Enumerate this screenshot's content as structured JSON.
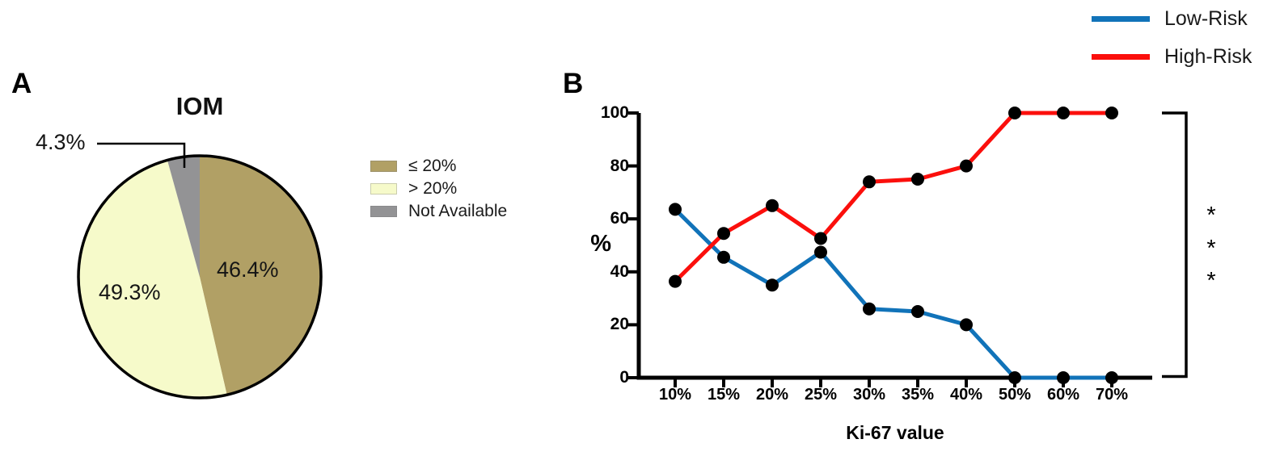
{
  "panels": {
    "a_label": "A",
    "b_label": "B"
  },
  "chart_data": [
    {
      "type": "pie",
      "panel": "A",
      "title": "IOM",
      "start_angle_deg_from_top": 0,
      "direction": "clockwise",
      "slices": [
        {
          "label": "≤ 20%",
          "value": 46.4,
          "display": "46.4%",
          "color": "#B1A065"
        },
        {
          "label": "> 20%",
          "value": 49.3,
          "display": "49.3%",
          "color": "#F6FACA"
        },
        {
          "label": "Not Available",
          "value": 4.3,
          "display": "4.3%",
          "color": "#939395"
        }
      ],
      "outline_color": "#000000",
      "legend_position": "right"
    },
    {
      "type": "line",
      "panel": "B",
      "xlabel": "Ki-67 value",
      "ylabel": "%",
      "ylim": [
        0,
        100
      ],
      "yticks": [
        0,
        20,
        40,
        60,
        80,
        100
      ],
      "categories": [
        "10%",
        "15%",
        "20%",
        "25%",
        "30%",
        "35%",
        "40%",
        "50%",
        "60%",
        "70%"
      ],
      "series": [
        {
          "name": "Low-Risk",
          "color": "#1173B9",
          "values": [
            63.6,
            45.5,
            35,
            47.4,
            26,
            25,
            20,
            0,
            0,
            0
          ]
        },
        {
          "name": "High-Risk",
          "color": "#FB0F0C",
          "values": [
            36.4,
            54.5,
            65,
            52.6,
            74,
            75,
            80,
            100,
            100,
            100
          ]
        }
      ],
      "markers": {
        "shape": "circle",
        "color": "#000000"
      },
      "significance": [
        "*",
        "*",
        "*"
      ],
      "grid": false,
      "legend_position": "top-right"
    }
  ]
}
